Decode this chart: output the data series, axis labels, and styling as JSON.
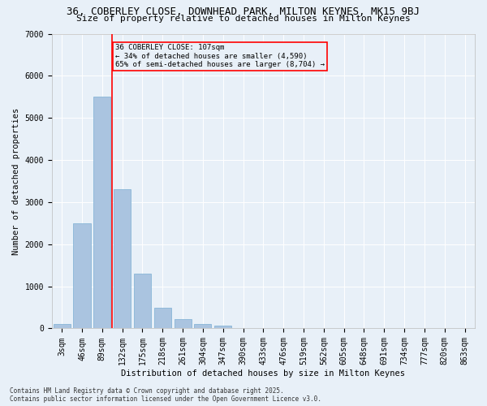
{
  "title": "36, COBERLEY CLOSE, DOWNHEAD PARK, MILTON KEYNES, MK15 9BJ",
  "subtitle": "Size of property relative to detached houses in Milton Keynes",
  "xlabel": "Distribution of detached houses by size in Milton Keynes",
  "ylabel": "Number of detached properties",
  "categories": [
    "3sqm",
    "46sqm",
    "89sqm",
    "132sqm",
    "175sqm",
    "218sqm",
    "261sqm",
    "304sqm",
    "347sqm",
    "390sqm",
    "433sqm",
    "476sqm",
    "519sqm",
    "562sqm",
    "605sqm",
    "648sqm",
    "691sqm",
    "734sqm",
    "777sqm",
    "820sqm",
    "863sqm"
  ],
  "values": [
    100,
    2500,
    5500,
    3300,
    1300,
    490,
    220,
    100,
    70,
    0,
    0,
    0,
    0,
    0,
    0,
    0,
    0,
    0,
    0,
    0,
    0
  ],
  "bar_color": "#aac4e0",
  "bar_edge_color": "#7bafd4",
  "vline_x_index": 2.5,
  "vline_color": "red",
  "annotation_text": "36 COBERLEY CLOSE: 107sqm\n← 34% of detached houses are smaller (4,590)\n65% of semi-detached houses are larger (8,704) →",
  "annotation_box_color": "red",
  "ylim": [
    0,
    7000
  ],
  "yticks": [
    0,
    1000,
    2000,
    3000,
    4000,
    5000,
    6000,
    7000
  ],
  "background_color": "#e8f0f8",
  "grid_color": "#ffffff",
  "title_fontsize": 9,
  "subtitle_fontsize": 8,
  "axis_label_fontsize": 7.5,
  "tick_fontsize": 7,
  "annotation_fontsize": 6.5,
  "footer_fontsize": 5.5,
  "footer_text": "Contains HM Land Registry data © Crown copyright and database right 2025.\nContains public sector information licensed under the Open Government Licence v3.0."
}
